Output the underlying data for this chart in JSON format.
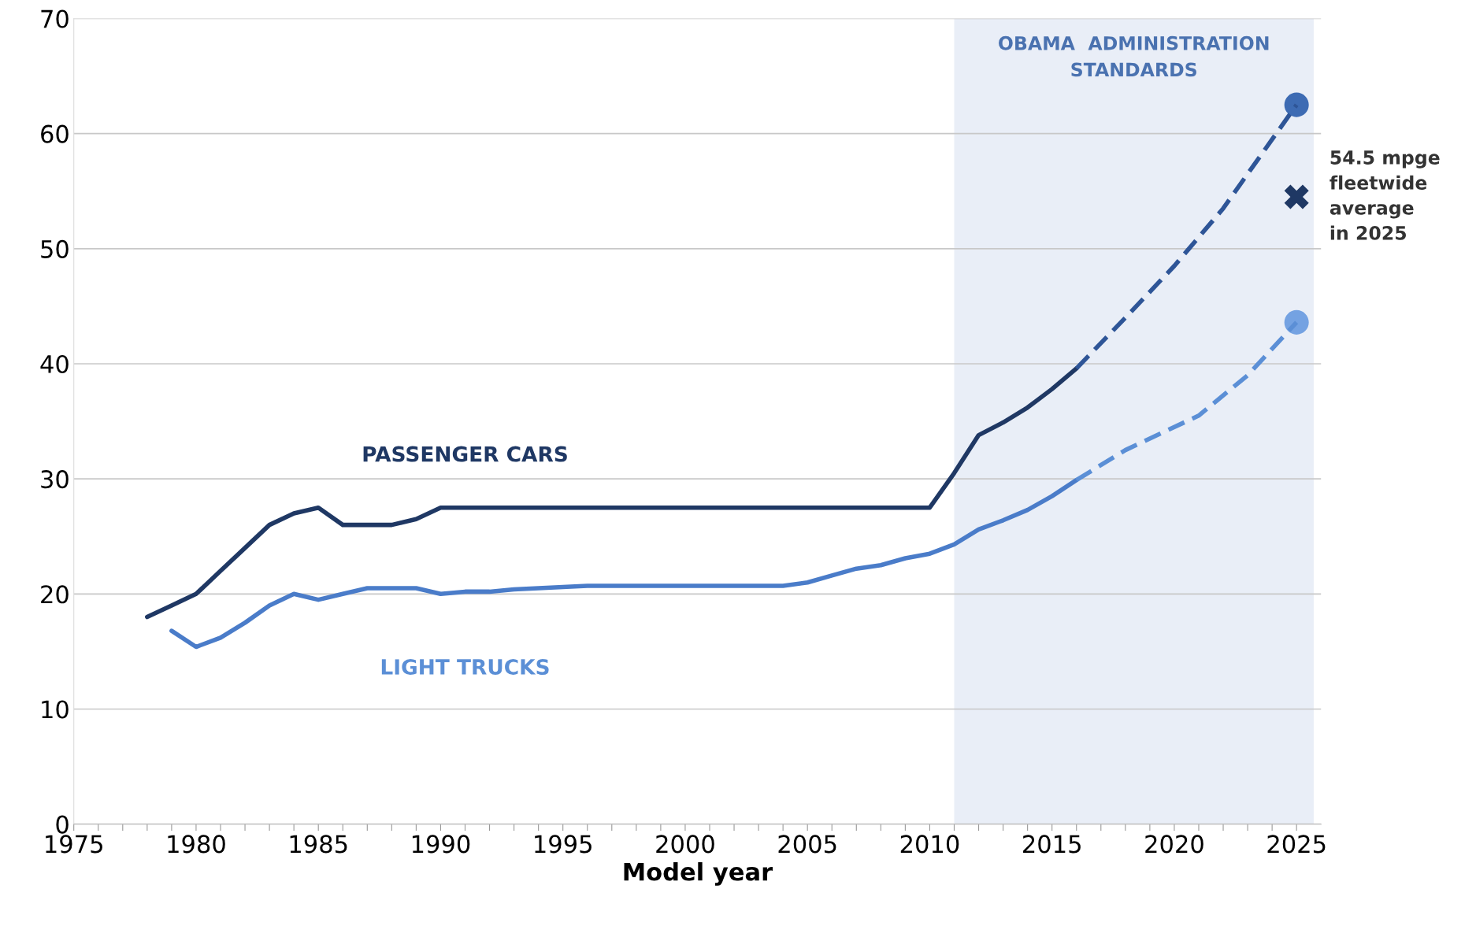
{
  "chart_data": {
    "type": "line",
    "xlabel": "Model year",
    "xlim": [
      1975,
      2026
    ],
    "ylim": [
      0,
      70
    ],
    "xticks": [
      1975,
      {
        "value": 1976,
        "label": null
      },
      {
        "value": 1977,
        "label": null
      },
      {
        "value": 1978,
        "label": null
      },
      {
        "value": 1979,
        "label": null
      },
      1980,
      {
        "value": 1981,
        "label": null
      },
      {
        "value": 1982,
        "label": null
      },
      {
        "value": 1983,
        "label": null
      },
      {
        "value": 1984,
        "label": null
      },
      1985,
      {
        "value": 1986,
        "label": null
      },
      {
        "value": 1987,
        "label": null
      },
      {
        "value": 1988,
        "label": null
      },
      {
        "value": 1989,
        "label": null
      },
      1990,
      {
        "value": 1991,
        "label": null
      },
      {
        "value": 1992,
        "label": null
      },
      {
        "value": 1993,
        "label": null
      },
      {
        "value": 1994,
        "label": null
      },
      1995,
      {
        "value": 1996,
        "label": null
      },
      {
        "value": 1997,
        "label": null
      },
      {
        "value": 1998,
        "label": null
      },
      {
        "value": 1999,
        "label": null
      },
      2000,
      {
        "value": 2001,
        "label": null
      },
      {
        "value": 2002,
        "label": null
      },
      {
        "value": 2003,
        "label": null
      },
      {
        "value": 2004,
        "label": null
      },
      2005,
      {
        "value": 2006,
        "label": null
      },
      {
        "value": 2007,
        "label": null
      },
      {
        "value": 2008,
        "label": null
      },
      {
        "value": 2009,
        "label": null
      },
      2010,
      {
        "value": 2011,
        "label": null
      },
      {
        "value": 2012,
        "label": null
      },
      {
        "value": 2013,
        "label": null
      },
      {
        "value": 2014,
        "label": null
      },
      2015,
      {
        "value": 2016,
        "label": null
      },
      {
        "value": 2017,
        "label": null
      },
      {
        "value": 2018,
        "label": null
      },
      {
        "value": 2019,
        "label": null
      },
      2020,
      {
        "value": 2021,
        "label": null
      },
      {
        "value": 2022,
        "label": null
      },
      {
        "value": 2023,
        "label": null
      },
      {
        "value": 2024,
        "label": null
      },
      2025
    ],
    "yticks": [
      0,
      10,
      20,
      30,
      40,
      50,
      60,
      70
    ],
    "grid": "y",
    "bands": [
      {
        "axis": "x",
        "from": 2011,
        "to": 2025.7,
        "label": "OBAMA  ADMINISTRATION\nSTANDARDS",
        "color": "#e9eef7"
      }
    ],
    "series": [
      {
        "name": "PASSENGER CARS",
        "color": "#1f3864",
        "line_style": "solid",
        "x": [
          1978,
          1979,
          1980,
          1981,
          1982,
          1983,
          1984,
          1985,
          1986,
          1987,
          1988,
          1989,
          1990,
          2010,
          2011,
          2012,
          2013,
          2014,
          2015,
          2016
        ],
        "values": [
          18,
          19,
          20,
          22,
          24,
          26,
          27,
          27.5,
          26,
          26,
          26,
          26.5,
          27.5,
          27.5,
          30.5,
          33.8,
          34.9,
          36.2,
          37.8,
          39.6
        ]
      },
      {
        "name": "LIGHT TRUCKS",
        "color": "#4a7cc9",
        "line_style": "solid",
        "x": [
          1979,
          1980,
          1981,
          1982,
          1983,
          1984,
          1985,
          1986,
          1987,
          1988,
          1989,
          1990,
          1991,
          1992,
          1993,
          1994,
          1995,
          1996,
          2004,
          2005,
          2006,
          2007,
          2008,
          2009,
          2010,
          2011,
          2012,
          2013,
          2014,
          2015,
          2016
        ],
        "values": [
          16.8,
          15.4,
          16.2,
          17.5,
          19,
          20,
          19.5,
          20,
          20.5,
          20.5,
          20.5,
          20,
          20.2,
          20.2,
          20.4,
          20.5,
          20.6,
          20.7,
          20.7,
          21,
          21.6,
          22.2,
          22.5,
          23.1,
          23.5,
          24.3,
          25.6,
          26.4,
          27.3,
          28.5,
          29.9
        ]
      },
      {
        "color": "#2e5597",
        "line_style": "dashed",
        "x": [
          2016,
          2018,
          2020,
          2022,
          2025
        ],
        "values": [
          39.6,
          44,
          48.5,
          53.5,
          62.5
        ]
      },
      {
        "color": "#5b8fd6",
        "line_style": "dashed",
        "x": [
          2016,
          2018,
          2021,
          2023,
          2025
        ],
        "values": [
          29.9,
          32.5,
          35.5,
          39,
          43.6
        ]
      },
      {
        "type": "scatter",
        "marker": "circle",
        "x": [
          2025,
          2025
        ],
        "values": [
          62.5,
          43.6
        ],
        "colors": [
          "#3d6bb3",
          "#74a2e2"
        ]
      },
      {
        "type": "scatter",
        "marker": "cross",
        "color": "#1f3864",
        "x": [
          2025
        ],
        "values": [
          54.5
        ]
      }
    ],
    "annotations": [
      {
        "text": "54.5 mpge\nfleetwide\naverage\nin 2025",
        "x": 2025,
        "y": 54.5
      }
    ]
  }
}
